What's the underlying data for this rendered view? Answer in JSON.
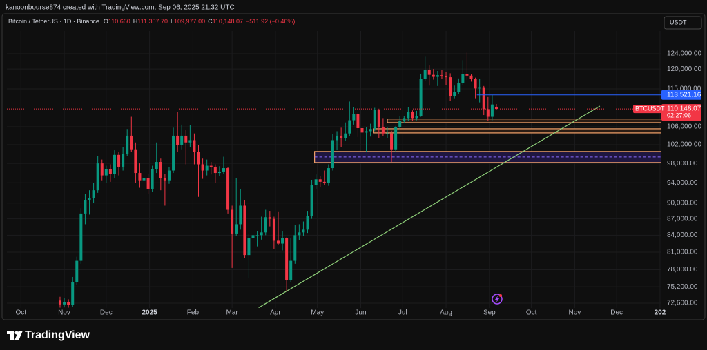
{
  "header": {
    "caption": "kanoonbourse874 created with TradingView.com, Sep 06, 2025 21:32 UTC",
    "symbol": "Bitcoin / TetherUS · 1D · Binance",
    "ohlc": [
      {
        "key": "O",
        "value": "110,660"
      },
      {
        "key": "H",
        "value": "111,307.70"
      },
      {
        "key": "L",
        "value": "109,977.00"
      },
      {
        "key": "C",
        "value": "110,148.07"
      }
    ],
    "change": "−511.92 (−0.46%)"
  },
  "currency_button": "USDT",
  "footer_logo": "TradingView",
  "chart_data": {
    "type": "candlestick",
    "x": [
      28,
      31,
      34,
      37,
      40,
      43,
      46,
      49,
      52,
      55,
      58,
      61,
      64,
      67,
      70,
      73,
      76,
      79,
      82,
      85,
      88,
      91,
      94,
      97,
      100,
      103,
      106,
      109,
      112,
      115,
      118,
      121,
      124,
      127,
      130,
      133,
      136,
      139,
      142,
      145,
      148,
      151,
      154,
      157,
      160,
      163,
      166,
      169,
      172,
      175,
      178,
      181,
      184,
      187,
      190,
      193,
      196,
      199,
      202,
      205,
      208,
      211,
      214,
      217,
      220,
      223,
      226,
      229,
      232,
      235,
      238,
      241,
      244,
      247,
      250,
      253,
      256,
      259,
      262,
      265,
      268,
      271,
      274,
      277,
      280,
      283,
      286,
      289,
      292,
      295,
      298,
      301,
      304,
      307,
      310,
      313,
      316,
      319,
      322,
      325,
      328,
      331,
      334,
      337,
      340
    ],
    "open": [
      73000,
      72400,
      72800,
      72300,
      76000,
      79500,
      88000,
      90500,
      91000,
      92500,
      98000,
      95500,
      96800,
      95800,
      99800,
      97300,
      100000,
      104000,
      101000,
      96000,
      94500,
      95000,
      92800,
      96800,
      98300,
      95000,
      94500,
      96500,
      104000,
      102000,
      104000,
      102500,
      103000,
      100500,
      97800,
      96500,
      97500,
      97300,
      96000,
      96300,
      97000,
      88700,
      84300,
      86000,
      89500,
      80500,
      83500,
      84000,
      84000,
      84500,
      87300,
      87000,
      83000,
      82500,
      83500,
      76300,
      79500,
      84000,
      84500,
      85000,
      87500,
      93500,
      94700,
      94200,
      94000,
      97000,
      103000,
      104000,
      103500,
      104500,
      107500,
      109000,
      105700,
      104700,
      105000,
      105500,
      110000,
      106000,
      104500,
      104500,
      101000,
      106000,
      107300,
      108000,
      109500,
      108000,
      108500,
      117500,
      119800,
      118500,
      118000,
      118400,
      118200,
      117900,
      113300,
      114300,
      116500,
      118700,
      118300,
      117400,
      115100,
      115400,
      110100,
      108300,
      110660
    ],
    "high": [
      73600,
      73400,
      73200,
      76800,
      80200,
      89000,
      91800,
      92500,
      94000,
      99500,
      98800,
      97500,
      97800,
      100800,
      100500,
      101500,
      105500,
      108300,
      102500,
      98000,
      99500,
      95800,
      97500,
      102500,
      99000,
      95800,
      97300,
      105800,
      109400,
      106500,
      105300,
      106400,
      104500,
      102000,
      99000,
      98800,
      98300,
      97800,
      97400,
      99400,
      97200,
      89500,
      95000,
      92800,
      90500,
      84300,
      85300,
      84700,
      87400,
      88700,
      88500,
      87400,
      88400,
      84700,
      83600,
      83500,
      85800,
      86000,
      86500,
      88500,
      94600,
      95700,
      95400,
      96500,
      97800,
      104300,
      105000,
      105800,
      107000,
      111900,
      110500,
      109300,
      106800,
      105900,
      106700,
      110400,
      110200,
      108000,
      106000,
      105100,
      106200,
      108500,
      108500,
      110500,
      109800,
      109700,
      118800,
      123200,
      120900,
      120000,
      119500,
      119800,
      119200,
      118900,
      115800,
      117600,
      122300,
      124300,
      118600,
      117800,
      117400,
      115700,
      113000,
      113500,
      111307.7
    ],
    "low": [
      71900,
      72000,
      71900,
      72000,
      75500,
      79000,
      86000,
      87800,
      90000,
      92000,
      94500,
      94000,
      94200,
      95000,
      95500,
      96500,
      99500,
      100500,
      94000,
      93000,
      93500,
      91800,
      92200,
      96000,
      92500,
      89500,
      93800,
      96000,
      100500,
      101000,
      97800,
      101500,
      97800,
      91200,
      94800,
      95500,
      95700,
      94000,
      95300,
      95800,
      88000,
      78300,
      83800,
      85000,
      80000,
      76600,
      81500,
      82000,
      83200,
      84000,
      85600,
      81600,
      82300,
      81300,
      74500,
      75900,
      79000,
      83100,
      83800,
      84400,
      87000,
      92800,
      93200,
      93500,
      93400,
      96500,
      100800,
      101500,
      102800,
      103900,
      106500,
      103700,
      103100,
      100400,
      103800,
      105000,
      103400,
      104000,
      103500,
      98300,
      100400,
      105500,
      106800,
      107300,
      107300,
      107500,
      108300,
      117000,
      115800,
      117300,
      115700,
      117500,
      116000,
      112000,
      112700,
      113700,
      116000,
      117200,
      116800,
      112700,
      111700,
      108700,
      107300,
      107500,
      109977
    ],
    "close": [
      72400,
      72800,
      72300,
      76000,
      79500,
      88000,
      90500,
      91000,
      92500,
      98000,
      95500,
      96800,
      95800,
      99800,
      97300,
      100000,
      104000,
      101000,
      96000,
      94500,
      95000,
      92800,
      96800,
      98300,
      95000,
      94500,
      96500,
      104000,
      102000,
      104000,
      102500,
      103000,
      100500,
      97800,
      96500,
      97500,
      97300,
      96000,
      96300,
      97000,
      88700,
      84300,
      86000,
      89500,
      80500,
      83500,
      84000,
      84000,
      84500,
      87300,
      87000,
      83000,
      82500,
      83500,
      76300,
      79500,
      84000,
      84500,
      85000,
      87500,
      93500,
      94700,
      94200,
      94000,
      97000,
      103000,
      104000,
      103500,
      104500,
      107500,
      109000,
      105700,
      104700,
      105000,
      105500,
      110000,
      106000,
      104500,
      104500,
      101000,
      106000,
      107300,
      108000,
      109500,
      108000,
      108500,
      117500,
      119800,
      118500,
      118000,
      118400,
      118200,
      117900,
      113300,
      114300,
      116500,
      118700,
      118300,
      117400,
      115100,
      115400,
      110100,
      108300,
      111200,
      110148.07
    ],
    "colors": {
      "up": "#089981",
      "down": "#f23645"
    },
    "log_scale": true,
    "grid": true,
    "ylim": [
      71850,
      130200
    ],
    "yticks": [
      {
        "value": 124000,
        "label": "124,000.00"
      },
      {
        "value": 120000,
        "label": "120,000.00"
      },
      {
        "value": 115000,
        "label": "115,000.00"
      },
      {
        "value": 106000,
        "label": "106,000.00"
      },
      {
        "value": 102000,
        "label": "102,000.00"
      },
      {
        "value": 98000,
        "label": "98,000.00"
      },
      {
        "value": 94000,
        "label": "94,000.00"
      },
      {
        "value": 90000,
        "label": "90,000.00"
      },
      {
        "value": 87000,
        "label": "87,000.00"
      },
      {
        "value": 84000,
        "label": "84,000.00"
      },
      {
        "value": 81000,
        "label": "81,000.00"
      },
      {
        "value": 78000,
        "label": "78,000.00"
      },
      {
        "value": 75200,
        "label": "75,200.00"
      },
      {
        "value": 72600,
        "label": "72,600.00"
      }
    ],
    "xlim": [
      -10,
      458
    ],
    "xticks": [
      {
        "value": 0,
        "label": "Oct"
      },
      {
        "value": 31,
        "label": "Nov"
      },
      {
        "value": 61,
        "label": "Dec"
      },
      {
        "value": 92,
        "label": "2025"
      },
      {
        "value": 123,
        "label": "Feb"
      },
      {
        "value": 151,
        "label": "Mar"
      },
      {
        "value": 182,
        "label": "Apr"
      },
      {
        "value": 212,
        "label": "May"
      },
      {
        "value": 243,
        "label": "Jun"
      },
      {
        "value": 273,
        "label": "Jul"
      },
      {
        "value": 304,
        "label": "Aug"
      },
      {
        "value": 335,
        "label": "Sep"
      },
      {
        "value": 365,
        "label": "Oct"
      },
      {
        "value": 396,
        "label": "Nov"
      },
      {
        "value": 426,
        "label": "Dec"
      },
      {
        "value": 457,
        "label": "202"
      }
    ],
    "price_line": {
      "symbol": "BTCUSDT",
      "value": 110148.07,
      "label": "110,148.07",
      "countdown": "02:27:06",
      "color": "#f23645"
    },
    "horizontal_line": {
      "start": 326,
      "value": 113521.16,
      "label": "113,521.16",
      "color": "#2962ff"
    },
    "zones": [
      {
        "start": 262,
        "top": 107800,
        "bottom": 106960,
        "color": "#f7a46b",
        "fill": "#2a1c14",
        "midline": false
      },
      {
        "start": 252,
        "top": 105550,
        "bottom": 104620,
        "color": "#f7a46b",
        "fill": "#2a1c14",
        "midline": false
      },
      {
        "start": 210,
        "top": 100530,
        "bottom": 98180,
        "color": "#f7a46b",
        "fill": "#1f1640",
        "midline": true
      }
    ],
    "trendline": {
      "x": [
        170,
        414
      ],
      "y": [
        71900,
        110820
      ],
      "color": "#8fd17a"
    }
  }
}
